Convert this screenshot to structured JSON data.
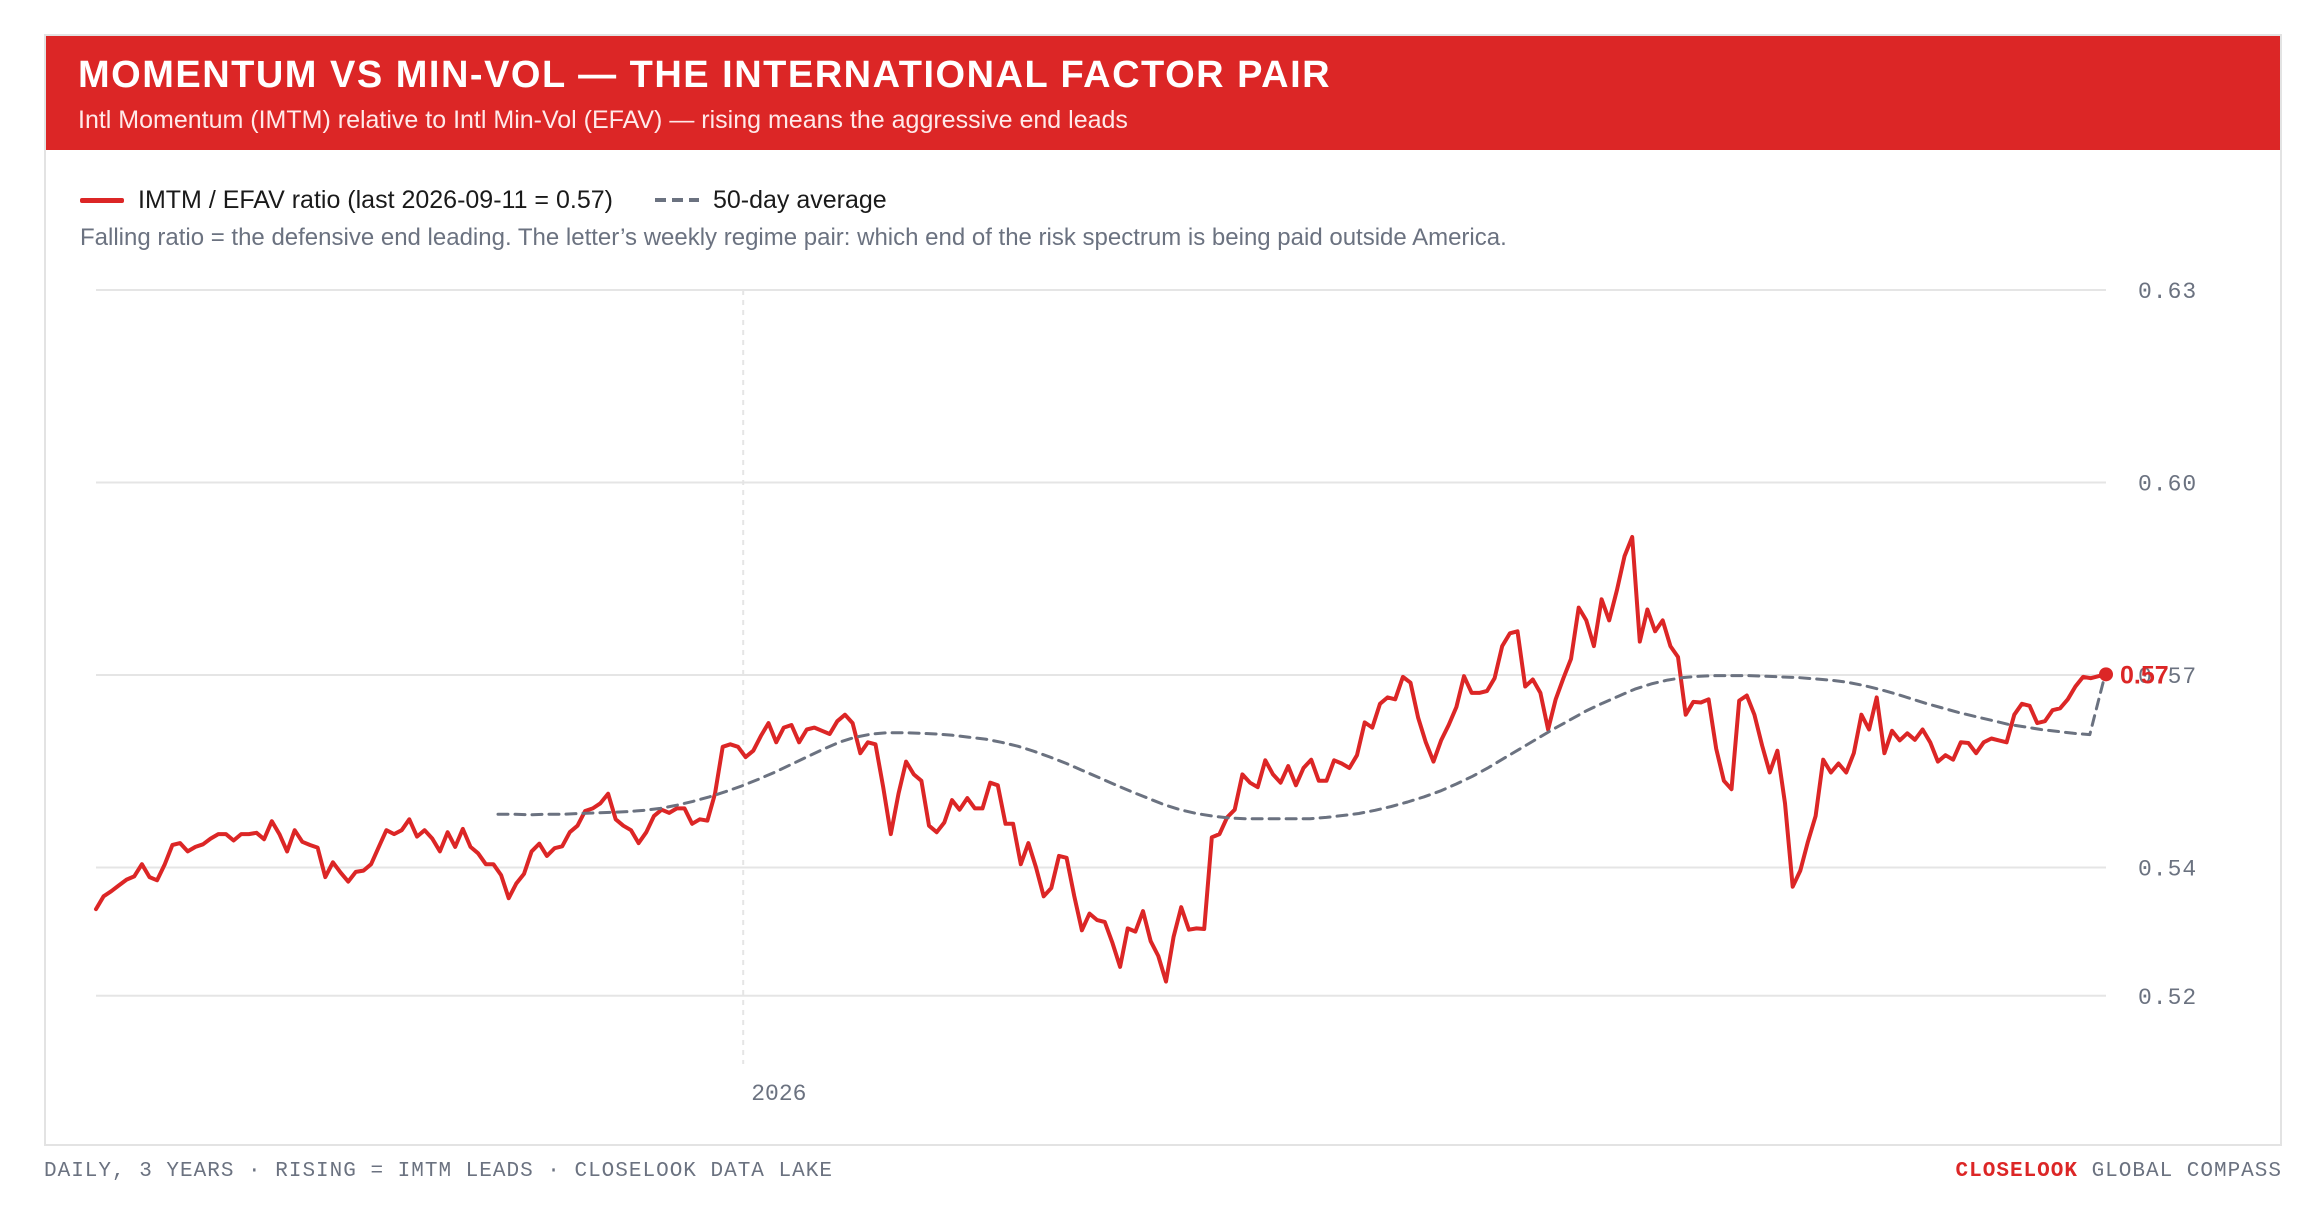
{
  "header": {
    "title": "MOMENTUM VS MIN-VOL — THE INTERNATIONAL FACTOR PAIR",
    "subtitle": "Intl Momentum (IMTM) relative to Intl Min-Vol (EFAV) — rising means the aggressive end leads"
  },
  "legend": {
    "ratio_label": "IMTM / EFAV ratio (last 2026-09-11 = 0.57)",
    "avg_label": "50-day average"
  },
  "note": "Falling ratio = the defensive end leading. The letter’s weekly regime pair: which end of the risk spectrum is being paid outside America.",
  "footer": {
    "left": "DAILY, 3 YEARS · RISING = IMTM LEADS · CLOSELOOK DATA LAKE",
    "brand": "CLOSELOOK",
    "right": "GLOBAL COMPASS"
  },
  "colors": {
    "accent": "#dc2626",
    "average": "#6b7280",
    "grid": "#e5e5e5"
  },
  "chart_data": {
    "type": "line",
    "y_ticks": [
      "0.63",
      "0.60",
      "0.57",
      "0.54",
      "0.52"
    ],
    "y_tick_values": [
      0.63,
      0.6,
      0.57,
      0.54,
      0.52
    ],
    "ylim": [
      0.52,
      0.63
    ],
    "x_ticks": [
      "2026"
    ],
    "x_tick_values": [
      0.322
    ],
    "last_label": "0.57",
    "last_value": 0.5701,
    "series": [
      {
        "name": "IMTM / EFAV ratio (last 2026-09-11 = 0.57)",
        "style": "solid",
        "values": [
          0.5335,
          0.5355,
          0.5363,
          0.5372,
          0.5381,
          0.5386,
          0.5405,
          0.5385,
          0.538,
          0.5405,
          0.5435,
          0.5438,
          0.5425,
          0.5432,
          0.5436,
          0.5445,
          0.5452,
          0.5452,
          0.5442,
          0.5452,
          0.5452,
          0.5454,
          0.5444,
          0.5472,
          0.5452,
          0.5425,
          0.5458,
          0.544,
          0.5435,
          0.5431,
          0.5385,
          0.5408,
          0.5392,
          0.5378,
          0.5393,
          0.5395,
          0.5405,
          0.5432,
          0.5458,
          0.5452,
          0.5458,
          0.5475,
          0.5448,
          0.5458,
          0.5445,
          0.5425,
          0.5455,
          0.5432,
          0.546,
          0.5432,
          0.5422,
          0.5405,
          0.5405,
          0.5388,
          0.5352,
          0.5375,
          0.539,
          0.5425,
          0.5437,
          0.5418,
          0.543,
          0.5433,
          0.5455,
          0.5465,
          0.5488,
          0.5492,
          0.55,
          0.5515,
          0.5475,
          0.5465,
          0.5458,
          0.5438,
          0.5455,
          0.548,
          0.549,
          0.5485,
          0.5492,
          0.5492,
          0.5468,
          0.5475,
          0.5473,
          0.5515,
          0.5588,
          0.5592,
          0.5588,
          0.5572,
          0.5582,
          0.5605,
          0.5625,
          0.5595,
          0.5618,
          0.5622,
          0.5595,
          0.5615,
          0.5618,
          0.5613,
          0.5608,
          0.5628,
          0.5638,
          0.5625,
          0.5578,
          0.5595,
          0.5592,
          0.5525,
          0.5452,
          0.5515,
          0.5565,
          0.5545,
          0.5535,
          0.5465,
          0.5455,
          0.547,
          0.5505,
          0.549,
          0.5508,
          0.5492,
          0.5492,
          0.5532,
          0.5528,
          0.5468,
          0.5468,
          0.5405,
          0.5438,
          0.54,
          0.5355,
          0.5368,
          0.5418,
          0.5415,
          0.5355,
          0.5302,
          0.5328,
          0.5318,
          0.5315,
          0.5282,
          0.5245,
          0.5305,
          0.53,
          0.5332,
          0.5285,
          0.5262,
          0.5222,
          0.5292,
          0.5338,
          0.5303,
          0.5305,
          0.5304,
          0.5447,
          0.5452,
          0.5478,
          0.549,
          0.5545,
          0.5532,
          0.5525,
          0.5567,
          0.5545,
          0.5532,
          0.5558,
          0.5528,
          0.5555,
          0.5568,
          0.5535,
          0.5535,
          0.5567,
          0.5562,
          0.5555,
          0.5575,
          0.5626,
          0.5618,
          0.5655,
          0.5665,
          0.5662,
          0.5697,
          0.5688,
          0.5633,
          0.5595,
          0.5565,
          0.5598,
          0.5622,
          0.565,
          0.5698,
          0.5672,
          0.5672,
          0.5675,
          0.5695,
          0.5745,
          0.5765,
          0.5768,
          0.5682,
          0.5693,
          0.5672,
          0.5615,
          0.5662,
          0.5695,
          0.5725,
          0.5805,
          0.5785,
          0.5745,
          0.5818,
          0.5785,
          0.5832,
          0.5885,
          0.5915,
          0.5752,
          0.5802,
          0.5768,
          0.5785,
          0.5745,
          0.5728,
          0.5638,
          0.5658,
          0.5657,
          0.5662,
          0.5585,
          0.5535,
          0.5522,
          0.566,
          0.5668,
          0.5638,
          0.559,
          0.5548,
          0.5582,
          0.55,
          0.537,
          0.5395,
          0.544,
          0.548,
          0.5568,
          0.5548,
          0.5562,
          0.5548,
          0.5578,
          0.5638,
          0.5615,
          0.5665,
          0.5578,
          0.5613,
          0.5598,
          0.5609,
          0.5599,
          0.5615,
          0.5595,
          0.5565,
          0.5575,
          0.5568,
          0.5595,
          0.5594,
          0.5578,
          0.5595,
          0.5601,
          0.5598,
          0.5595,
          0.5638,
          0.5655,
          0.5652,
          0.5625,
          0.5628,
          0.5645,
          0.5648,
          0.5662,
          0.5682,
          0.5697,
          0.5695,
          0.5698,
          0.5701
        ]
      },
      {
        "name": "50-day average",
        "style": "dashed",
        "x_start": 0.2,
        "values": [
          0.5483,
          0.5483,
          0.5482,
          0.5483,
          0.5483,
          0.5484,
          0.5485,
          0.5486,
          0.5487,
          0.5489,
          0.5492,
          0.5497,
          0.5503,
          0.551,
          0.5518,
          0.5527,
          0.5537,
          0.5548,
          0.556,
          0.5572,
          0.5584,
          0.5595,
          0.5603,
          0.5608,
          0.561,
          0.561,
          0.5609,
          0.5608,
          0.5606,
          0.5603,
          0.56,
          0.5595,
          0.5589,
          0.5581,
          0.5572,
          0.5562,
          0.5551,
          0.554,
          0.5529,
          0.5518,
          0.5508,
          0.5498,
          0.549,
          0.5484,
          0.548,
          0.5477,
          0.5476,
          0.5476,
          0.5476,
          0.5476,
          0.5476,
          0.5478,
          0.5481,
          0.5484,
          0.5489,
          0.5495,
          0.5502,
          0.551,
          0.5519,
          0.553,
          0.5542,
          0.5556,
          0.5571,
          0.5586,
          0.5601,
          0.5616,
          0.563,
          0.5644,
          0.5656,
          0.5667,
          0.5678,
          0.5686,
          0.5692,
          0.5696,
          0.5698,
          0.5699,
          0.5699,
          0.5699,
          0.5698,
          0.5697,
          0.5696,
          0.5694,
          0.5692,
          0.5689,
          0.5684,
          0.5678,
          0.5671,
          0.5663,
          0.5655,
          0.5648,
          0.5641,
          0.5635,
          0.5629,
          0.5623,
          0.5619,
          0.5615,
          0.5612,
          0.5609,
          0.5607,
          0.5706
        ]
      }
    ]
  }
}
